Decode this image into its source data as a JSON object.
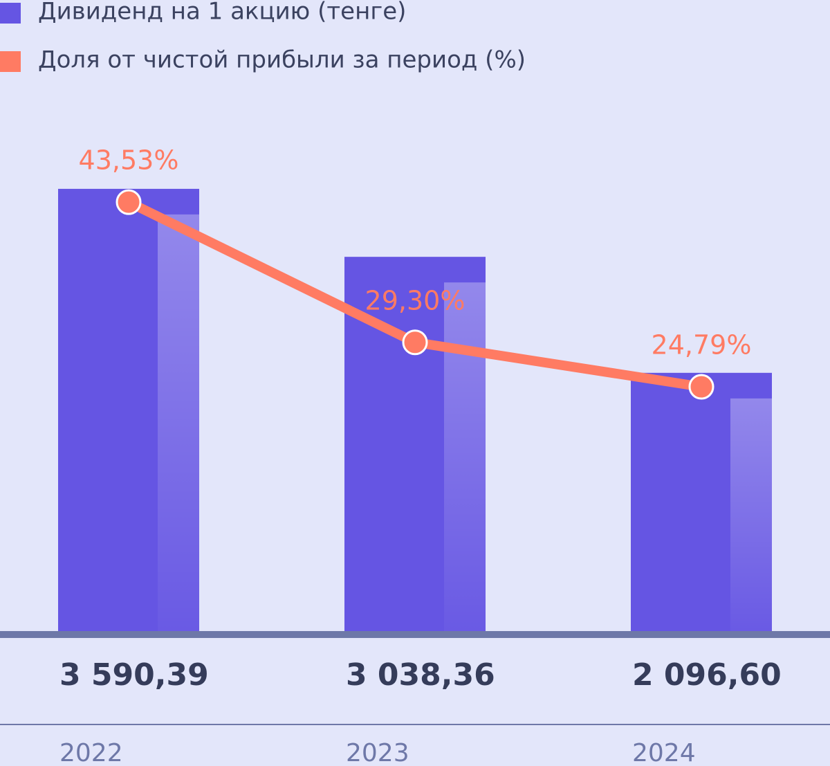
{
  "chart_data": {
    "type": "bar",
    "categories": [
      "2022",
      "2023",
      "2024"
    ],
    "series": [
      {
        "name": "Дивиденд на 1 акцию (тенге)",
        "color": "#6555e3",
        "values": [
          3590.39,
          3038.36,
          2096.6
        ],
        "value_labels": [
          "3 590,39",
          "3 038,36",
          "2 096,60"
        ]
      },
      {
        "name": "Доля от чистой прибыли за период (%)",
        "type": "line",
        "axis": "y2",
        "color": "#ff7b63",
        "values": [
          43.53,
          29.3,
          24.79
        ],
        "value_labels": [
          "43,53%",
          "29,30%",
          "24,79%"
        ]
      }
    ],
    "ylim": [
      0,
      4000
    ],
    "y2lim": [
      0,
      50
    ],
    "grid": false
  }
}
